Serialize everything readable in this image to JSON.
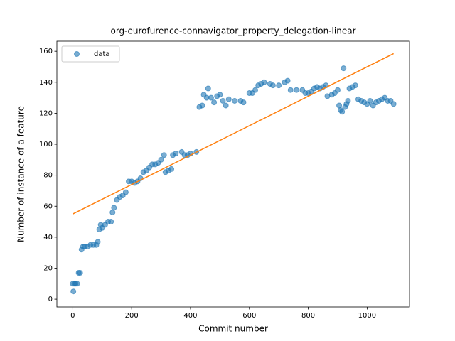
{
  "chart_data": {
    "type": "scatter",
    "title": "org-eurofurence-connavigator_property_delegation-linear",
    "xlabel": "Commit number",
    "ylabel": "Number of instance of a feature",
    "xlim": [
      -54,
      1144
    ],
    "ylim": [
      -5,
      166.5
    ],
    "xticks": [
      0,
      200,
      400,
      600,
      800,
      1000
    ],
    "yticks": [
      0,
      20,
      40,
      60,
      80,
      100,
      120,
      140,
      160
    ],
    "legend": "upper left",
    "series": [
      {
        "name": "data",
        "type": "scatter",
        "color": "#1f77b4",
        "x": [
          0,
          2,
          5,
          10,
          15,
          20,
          25,
          30,
          35,
          40,
          50,
          60,
          70,
          80,
          85,
          90,
          95,
          100,
          110,
          120,
          130,
          135,
          140,
          150,
          160,
          170,
          180,
          190,
          200,
          210,
          220,
          230,
          240,
          250,
          260,
          270,
          280,
          290,
          300,
          310,
          315,
          325,
          335,
          340,
          350,
          370,
          380,
          390,
          400,
          420,
          430,
          440,
          445,
          455,
          460,
          470,
          480,
          490,
          500,
          510,
          520,
          530,
          550,
          570,
          580,
          600,
          610,
          620,
          630,
          640,
          650,
          670,
          680,
          700,
          720,
          730,
          740,
          760,
          780,
          790,
          800,
          810,
          820,
          830,
          840,
          850,
          860,
          865,
          880,
          890,
          900,
          905,
          910,
          915,
          920,
          925,
          930,
          935,
          940,
          950,
          960,
          970,
          980,
          990,
          1000,
          1010,
          1020,
          1030,
          1040,
          1050,
          1060,
          1070,
          1080,
          1090
        ],
        "values": [
          10,
          5,
          10,
          10,
          10,
          17,
          17,
          32,
          34,
          34,
          34,
          35,
          35,
          35,
          37,
          45,
          48,
          46,
          48,
          50,
          50,
          56,
          59,
          64,
          66,
          67,
          69,
          76,
          76,
          75,
          76,
          78,
          82,
          83,
          85,
          87,
          87,
          88,
          90,
          93,
          82,
          83,
          84,
          93,
          94,
          95,
          93,
          93,
          94,
          95,
          124,
          125,
          132,
          130,
          136,
          130,
          127,
          131,
          132,
          128,
          125,
          129,
          128,
          128,
          127,
          133,
          133,
          135,
          138,
          139,
          140,
          139,
          138,
          138,
          140,
          141,
          135,
          135,
          135,
          133,
          133,
          134,
          136,
          137,
          136,
          137,
          138,
          131,
          132,
          133,
          135,
          125,
          122,
          121,
          149,
          124,
          126,
          128,
          136,
          137,
          138,
          129,
          128,
          127,
          126,
          128,
          125,
          127,
          128,
          129,
          130,
          128,
          128,
          126
        ]
      },
      {
        "type": "line",
        "color": "#ff7f0e",
        "x": [
          0,
          1090
        ],
        "values": [
          55,
          158.5
        ]
      }
    ]
  }
}
